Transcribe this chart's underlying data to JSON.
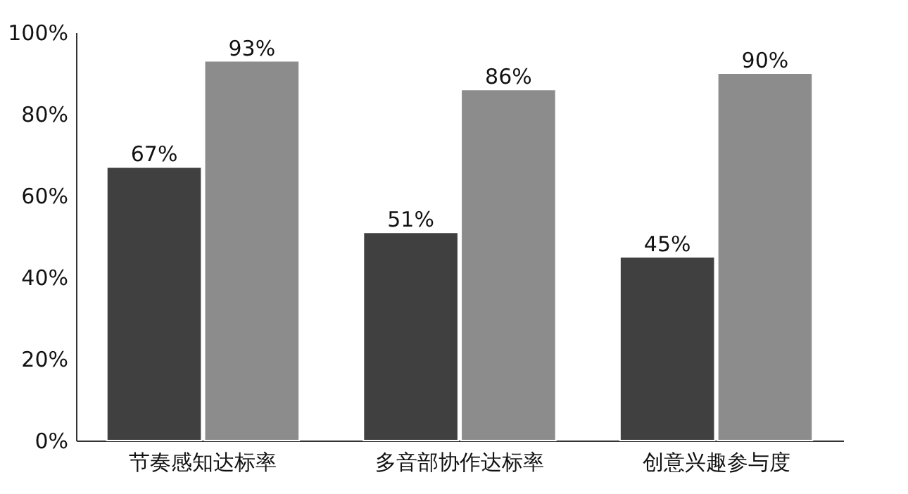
{
  "chart_data": {
    "type": "bar",
    "categories": [
      "节奏感知达标率",
      "多音部协作达标率",
      "创意兴趣参与度"
    ],
    "series": [
      {
        "color": "#404040",
        "values": [
          67,
          51,
          45
        ]
      },
      {
        "color": "#8c8c8c",
        "values": [
          93,
          86,
          90
        ]
      }
    ],
    "ylim": [
      0,
      100
    ],
    "yticks": [
      {
        "value": 0,
        "label": "0%"
      },
      {
        "value": 20,
        "label": "20%"
      },
      {
        "value": 40,
        "label": "40%"
      },
      {
        "value": 60,
        "label": "60%"
      },
      {
        "value": 80,
        "label": "80%"
      },
      {
        "value": 100,
        "label": "100%"
      }
    ],
    "value_labels": [
      [
        "67%",
        "51%",
        "45%"
      ],
      [
        "93%",
        "86%",
        "90%"
      ]
    ],
    "grid": false
  }
}
